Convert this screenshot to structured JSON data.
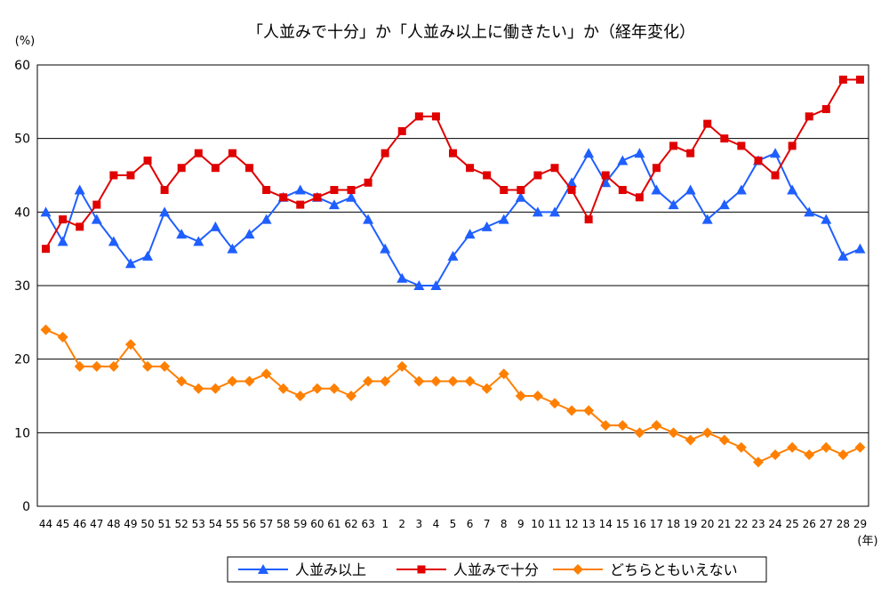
{
  "chart_data": {
    "type": "line",
    "title": "「人並みで十分」か「人並み以上に働きたい」か（経年変化）",
    "ylabel": "(%)",
    "xlabel": "(年)",
    "ylim": [
      0,
      60
    ],
    "yticks": [
      0,
      10,
      20,
      30,
      40,
      50,
      60
    ],
    "grid": true,
    "legend_position": "bottom",
    "categories": [
      "44",
      "45",
      "46",
      "47",
      "48",
      "49",
      "50",
      "51",
      "52",
      "53",
      "54",
      "55",
      "56",
      "57",
      "58",
      "59",
      "60",
      "61",
      "62",
      "63",
      "1",
      "2",
      "3",
      "4",
      "5",
      "6",
      "7",
      "8",
      "9",
      "10",
      "11",
      "12",
      "13",
      "14",
      "15",
      "16",
      "17",
      "18",
      "19",
      "20",
      "21",
      "22",
      "23",
      "24",
      "25",
      "26",
      "27",
      "28",
      "29"
    ],
    "series": [
      {
        "name": "人並み以上",
        "color": "#1f5fff",
        "marker": "triangle",
        "values": [
          40,
          36,
          43,
          39,
          36,
          33,
          34,
          40,
          37,
          36,
          38,
          35,
          37,
          39,
          42,
          43,
          42,
          41,
          42,
          39,
          35,
          31,
          30,
          30,
          34,
          37,
          38,
          39,
          42,
          40,
          40,
          44,
          48,
          44,
          47,
          48,
          43,
          41,
          43,
          39,
          41,
          43,
          47,
          48,
          43,
          40,
          39,
          34,
          35
        ]
      },
      {
        "name": "人並みで十分",
        "color": "#e00000",
        "marker": "square",
        "values": [
          35,
          39,
          38,
          41,
          45,
          45,
          47,
          43,
          46,
          48,
          46,
          48,
          46,
          43,
          42,
          41,
          42,
          43,
          43,
          44,
          48,
          51,
          53,
          53,
          48,
          46,
          45,
          43,
          43,
          45,
          46,
          43,
          39,
          45,
          43,
          42,
          46,
          49,
          48,
          52,
          50,
          49,
          47,
          45,
          49,
          53,
          54,
          58,
          58
        ]
      },
      {
        "name": "どちらともいえない",
        "color": "#ff7f00",
        "marker": "diamond",
        "values": [
          24,
          23,
          19,
          19,
          19,
          22,
          19,
          19,
          17,
          16,
          16,
          17,
          17,
          18,
          16,
          15,
          16,
          16,
          15,
          17,
          17,
          19,
          17,
          17,
          17,
          17,
          16,
          18,
          15,
          15,
          14,
          13,
          13,
          11,
          11,
          10,
          11,
          10,
          9,
          10,
          9,
          8,
          6,
          7,
          8,
          7,
          8,
          7,
          8
        ]
      }
    ]
  }
}
